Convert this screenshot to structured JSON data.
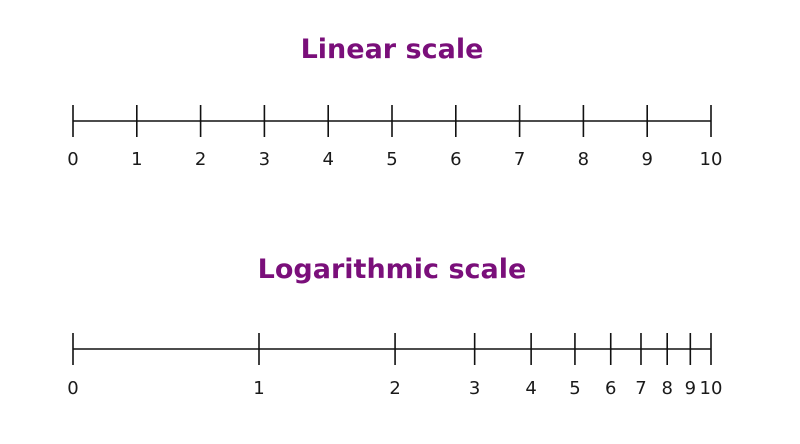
{
  "linear_scale": {
    "title": "Linear scale",
    "ticks": [
      {
        "label": "0",
        "value": 0
      },
      {
        "label": "1",
        "value": 1
      },
      {
        "label": "2",
        "value": 2
      },
      {
        "label": "3",
        "value": 3
      },
      {
        "label": "4",
        "value": 4
      },
      {
        "label": "5",
        "value": 5
      },
      {
        "label": "6",
        "value": 6
      },
      {
        "label": "7",
        "value": 7
      },
      {
        "label": "8",
        "value": 8
      },
      {
        "label": "9",
        "value": 9
      },
      {
        "label": "10",
        "value": 10
      }
    ]
  },
  "log_scale": {
    "title": "Logarithmic scale",
    "ticks": [
      {
        "label": "0",
        "value": 0
      },
      {
        "label": "1",
        "value": 1
      },
      {
        "label": "2",
        "value": 2
      },
      {
        "label": "3",
        "value": 3
      },
      {
        "label": "4",
        "value": 4
      },
      {
        "label": "5",
        "value": 5
      },
      {
        "label": "6",
        "value": 6
      },
      {
        "label": "7",
        "value": 7
      },
      {
        "label": "8",
        "value": 8
      },
      {
        "label": "9",
        "value": 9
      },
      {
        "label": "10",
        "value": 10
      }
    ]
  },
  "colors": {
    "title": "#7a0f7a",
    "axis": "#111111",
    "label": "#1a1a1a"
  }
}
